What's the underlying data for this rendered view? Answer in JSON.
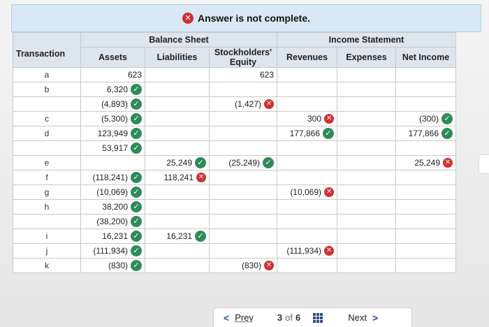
{
  "banner": {
    "status_icon": "x-icon",
    "message": "Answer is not complete."
  },
  "table": {
    "groups": {
      "transaction": "Transaction",
      "balance_sheet": "Balance Sheet",
      "income_statement": "Income Statement"
    },
    "columns": {
      "assets": "Assets",
      "liabilities": "Liabilities",
      "equity": "Stockholders' Equity",
      "revenues": "Revenues",
      "expenses": "Expenses",
      "net_income": "Net Income"
    },
    "rows": [
      {
        "tx": "a",
        "assets": {
          "v": "623",
          "s": ""
        },
        "liabilities": {
          "v": "",
          "s": ""
        },
        "equity": {
          "v": "623",
          "s": ""
        },
        "revenues": {
          "v": "",
          "s": ""
        },
        "expenses": {
          "v": "",
          "s": ""
        },
        "net_income": {
          "v": "",
          "s": ""
        }
      },
      {
        "tx": "b",
        "assets": {
          "v": "6,320",
          "s": "correct"
        },
        "liabilities": {
          "v": "",
          "s": ""
        },
        "equity": {
          "v": "",
          "s": ""
        },
        "revenues": {
          "v": "",
          "s": ""
        },
        "expenses": {
          "v": "",
          "s": ""
        },
        "net_income": {
          "v": "",
          "s": ""
        }
      },
      {
        "tx": "",
        "assets": {
          "v": "(4,893)",
          "s": "correct"
        },
        "liabilities": {
          "v": "",
          "s": ""
        },
        "equity": {
          "v": "(1,427)",
          "s": "incorrect"
        },
        "revenues": {
          "v": "",
          "s": ""
        },
        "expenses": {
          "v": "",
          "s": ""
        },
        "net_income": {
          "v": "",
          "s": ""
        }
      },
      {
        "tx": "c",
        "assets": {
          "v": "(5,300)",
          "s": "correct"
        },
        "liabilities": {
          "v": "",
          "s": ""
        },
        "equity": {
          "v": "",
          "s": ""
        },
        "revenues": {
          "v": "300",
          "s": "incorrect"
        },
        "expenses": {
          "v": "",
          "s": ""
        },
        "net_income": {
          "v": "(300)",
          "s": "correct"
        }
      },
      {
        "tx": "d",
        "assets": {
          "v": "123,949",
          "s": "correct"
        },
        "liabilities": {
          "v": "",
          "s": ""
        },
        "equity": {
          "v": "",
          "s": ""
        },
        "revenues": {
          "v": "177,866",
          "s": "correct"
        },
        "expenses": {
          "v": "",
          "s": ""
        },
        "net_income": {
          "v": "177,866",
          "s": "correct"
        }
      },
      {
        "tx": "",
        "assets": {
          "v": "53,917",
          "s": "correct"
        },
        "liabilities": {
          "v": "",
          "s": ""
        },
        "equity": {
          "v": "",
          "s": ""
        },
        "revenues": {
          "v": "",
          "s": ""
        },
        "expenses": {
          "v": "",
          "s": ""
        },
        "net_income": {
          "v": "",
          "s": ""
        }
      },
      {
        "tx": "e",
        "assets": {
          "v": "",
          "s": ""
        },
        "liabilities": {
          "v": "25,249",
          "s": "correct"
        },
        "equity": {
          "v": "(25,249)",
          "s": "correct"
        },
        "revenues": {
          "v": "",
          "s": ""
        },
        "expenses": {
          "v": "",
          "s": ""
        },
        "net_income": {
          "v": "25,249",
          "s": "incorrect"
        }
      },
      {
        "tx": "f",
        "assets": {
          "v": "(118,241)",
          "s": "correct"
        },
        "liabilities": {
          "v": "118,241",
          "s": "incorrect"
        },
        "equity": {
          "v": "",
          "s": ""
        },
        "revenues": {
          "v": "",
          "s": ""
        },
        "expenses": {
          "v": "",
          "s": ""
        },
        "net_income": {
          "v": "",
          "s": ""
        }
      },
      {
        "tx": "g",
        "assets": {
          "v": "(10,069)",
          "s": "correct"
        },
        "liabilities": {
          "v": "",
          "s": ""
        },
        "equity": {
          "v": "",
          "s": ""
        },
        "revenues": {
          "v": "(10,069)",
          "s": "incorrect"
        },
        "expenses": {
          "v": "",
          "s": ""
        },
        "net_income": {
          "v": "",
          "s": ""
        }
      },
      {
        "tx": "h",
        "assets": {
          "v": "38,200",
          "s": "correct"
        },
        "liabilities": {
          "v": "",
          "s": ""
        },
        "equity": {
          "v": "",
          "s": ""
        },
        "revenues": {
          "v": "",
          "s": ""
        },
        "expenses": {
          "v": "",
          "s": ""
        },
        "net_income": {
          "v": "",
          "s": ""
        }
      },
      {
        "tx": "",
        "assets": {
          "v": "(38,200)",
          "s": "correct"
        },
        "liabilities": {
          "v": "",
          "s": ""
        },
        "equity": {
          "v": "",
          "s": ""
        },
        "revenues": {
          "v": "",
          "s": ""
        },
        "expenses": {
          "v": "",
          "s": ""
        },
        "net_income": {
          "v": "",
          "s": ""
        }
      },
      {
        "tx": "i",
        "assets": {
          "v": "16,231",
          "s": "correct"
        },
        "liabilities": {
          "v": "16,231",
          "s": "correct"
        },
        "equity": {
          "v": "",
          "s": ""
        },
        "revenues": {
          "v": "",
          "s": ""
        },
        "expenses": {
          "v": "",
          "s": ""
        },
        "net_income": {
          "v": "",
          "s": ""
        }
      },
      {
        "tx": "j",
        "assets": {
          "v": "(111,934)",
          "s": "correct"
        },
        "liabilities": {
          "v": "",
          "s": ""
        },
        "equity": {
          "v": "",
          "s": ""
        },
        "revenues": {
          "v": "(111,934)",
          "s": "incorrect"
        },
        "expenses": {
          "v": "",
          "s": ""
        },
        "net_income": {
          "v": "",
          "s": ""
        }
      },
      {
        "tx": "k",
        "assets": {
          "v": "(830)",
          "s": "correct"
        },
        "liabilities": {
          "v": "",
          "s": ""
        },
        "equity": {
          "v": "(830)",
          "s": "incorrect"
        },
        "revenues": {
          "v": "",
          "s": ""
        },
        "expenses": {
          "v": "",
          "s": ""
        },
        "net_income": {
          "v": "",
          "s": ""
        }
      }
    ]
  },
  "pager": {
    "prev_label": "Prev",
    "current": "3",
    "of_label": "of",
    "total": "6",
    "next_label": "Next",
    "grid_icon": "grid-icon"
  },
  "colors": {
    "correct": "#2e8b57",
    "incorrect": "#d32f2f",
    "header_bg": "#dde5ee",
    "banner_bg": "#d9e8f4"
  }
}
